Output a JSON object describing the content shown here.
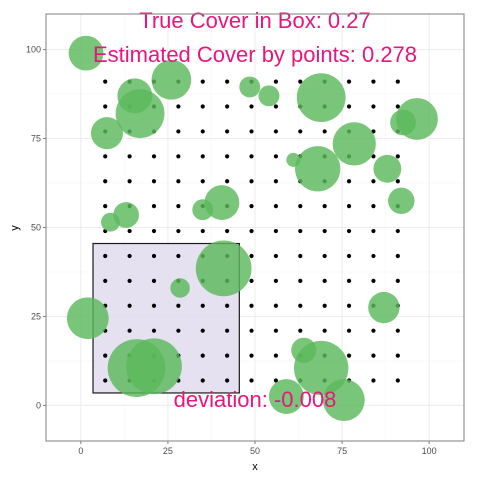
{
  "chart_data": {
    "type": "scatter",
    "xlabel": "x",
    "ylabel": "y",
    "xlim": [
      -10,
      110
    ],
    "ylim": [
      -10,
      110
    ],
    "x_ticks": [
      0,
      25,
      50,
      75,
      100
    ],
    "y_ticks": [
      0,
      25,
      50,
      75,
      100
    ],
    "x_tick_labels": [
      "0",
      "25",
      "50",
      "75",
      "100"
    ],
    "y_tick_labels": [
      "0",
      "25",
      "50",
      "75",
      "100"
    ],
    "grid": true,
    "colors": {
      "circle": "#5cb85c",
      "box_fill": "#e2dcee",
      "box_stroke": "#1a1a1a",
      "annotation": "#e5177f",
      "point": "#000000",
      "grid_major": "#ececec",
      "grid_minor": "#f6f6f6",
      "panel_border": "#7f7f7f"
    },
    "annotations": [
      {
        "key": "true_cover",
        "text": "True Cover in Box: 0.27",
        "x": 50,
        "y": 106
      },
      {
        "key": "estimated_cover",
        "text": "Estimated Cover by points: 0.278",
        "x": 50,
        "y": 96.5
      },
      {
        "key": "deviation",
        "text": "deviation: -0.008",
        "x": 50,
        "y": -0.5
      }
    ],
    "box": {
      "xmin": 3.5,
      "xmax": 45.5,
      "ymin": 3.5,
      "ymax": 45.5
    },
    "grid_points": {
      "x": [
        7,
        14,
        21,
        28,
        35,
        42,
        49,
        56,
        63,
        70,
        77,
        84,
        91
      ],
      "y": [
        7,
        14,
        21,
        28,
        35,
        42,
        49,
        56,
        63,
        70,
        77,
        84,
        91
      ]
    },
    "circles": [
      {
        "x": 1.5,
        "y": 99,
        "r": 5
      },
      {
        "x": 26,
        "y": 91.5,
        "r": 5.7
      },
      {
        "x": 48.5,
        "y": 89.5,
        "r": 3
      },
      {
        "x": 54,
        "y": 87,
        "r": 3
      },
      {
        "x": 15.5,
        "y": 87,
        "r": 5
      },
      {
        "x": 17,
        "y": 82,
        "r": 7
      },
      {
        "x": 7.5,
        "y": 76.5,
        "r": 4.6
      },
      {
        "x": 69,
        "y": 86.5,
        "r": 7
      },
      {
        "x": 96.5,
        "y": 80.5,
        "r": 6
      },
      {
        "x": 92.5,
        "y": 79.5,
        "r": 3.7
      },
      {
        "x": 78.5,
        "y": 73.5,
        "r": 6.2
      },
      {
        "x": 61,
        "y": 69,
        "r": 2
      },
      {
        "x": 68,
        "y": 66.5,
        "r": 6.5
      },
      {
        "x": 88,
        "y": 66.5,
        "r": 4
      },
      {
        "x": 92,
        "y": 57.5,
        "r": 3.8
      },
      {
        "x": 40.5,
        "y": 57,
        "r": 5
      },
      {
        "x": 35,
        "y": 55,
        "r": 3
      },
      {
        "x": 13,
        "y": 53.5,
        "r": 3.7
      },
      {
        "x": 8.5,
        "y": 51.5,
        "r": 2.7
      },
      {
        "x": 41,
        "y": 38.5,
        "r": 8
      },
      {
        "x": 28.5,
        "y": 33,
        "r": 2.8
      },
      {
        "x": 2,
        "y": 24.5,
        "r": 6
      },
      {
        "x": 87,
        "y": 27.5,
        "r": 4.5
      },
      {
        "x": 64,
        "y": 15.5,
        "r": 3.6
      },
      {
        "x": 21,
        "y": 11,
        "r": 8
      },
      {
        "x": 16,
        "y": 10.5,
        "r": 8.3
      },
      {
        "x": 69,
        "y": 10.5,
        "r": 7.8
      },
      {
        "x": 59,
        "y": 2.5,
        "r": 5
      },
      {
        "x": 75.5,
        "y": 1.5,
        "r": 6
      }
    ]
  }
}
